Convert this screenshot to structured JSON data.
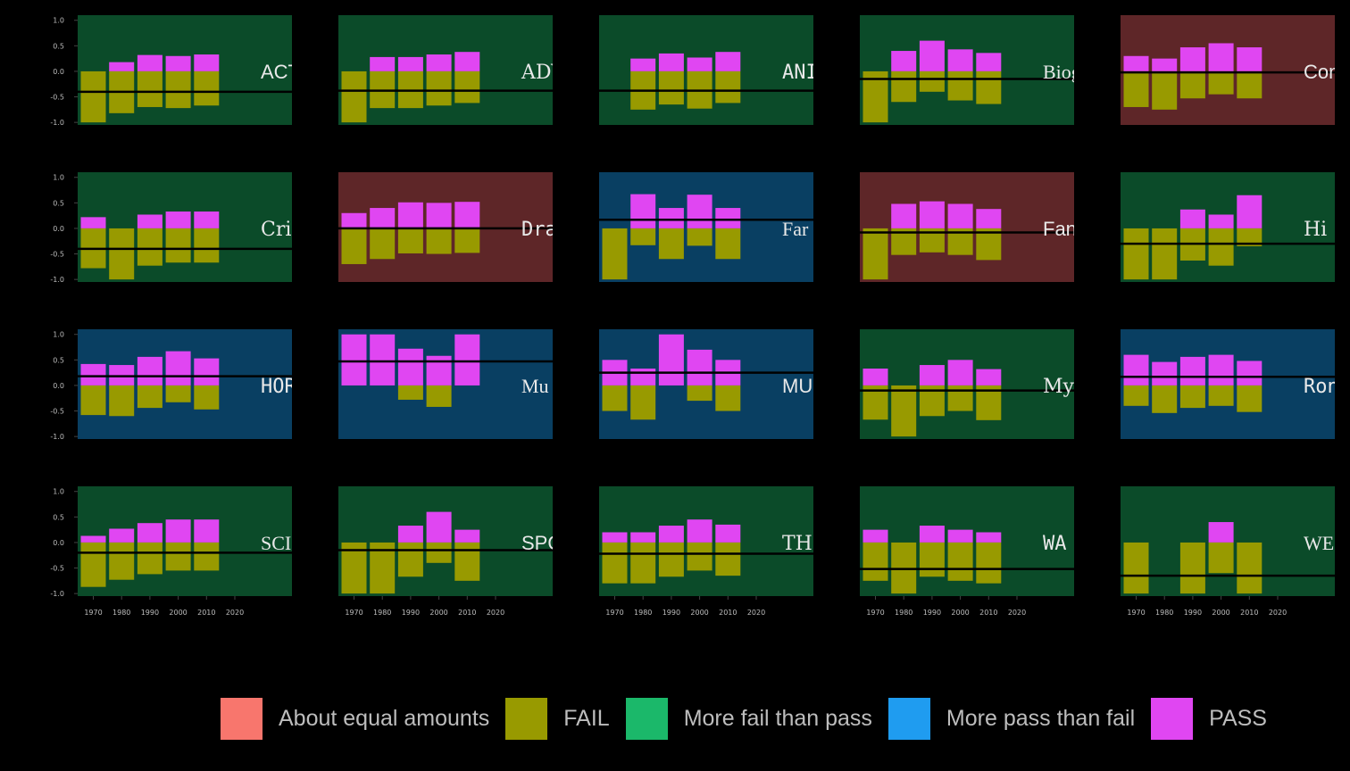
{
  "chart_data": {
    "type": "bar",
    "decades": [
      "1970",
      "1980",
      "1990",
      "2000",
      "2010"
    ],
    "x_ticks": [
      "1970",
      "1980",
      "1990",
      "2000",
      "2010",
      "2020"
    ],
    "y_ticks": [
      "1.0",
      "0.5",
      "0.0",
      "-0.5",
      "-1.0"
    ],
    "ylim": [
      -1.05,
      1.1
    ],
    "colors": {
      "About equal amounts": "#5e2628",
      "More fail than pass": "#0b4b29",
      "More pass than fail": "#093f62",
      "PASS": "#e046f2",
      "FAIL": "#989a00",
      "mean_line": "#000000"
    },
    "legend": [
      {
        "label": "About equal amounts",
        "color": "#f8766d"
      },
      {
        "label": "FAIL",
        "color": "#989a00"
      },
      {
        "label": "More fail than pass",
        "color": "#1bb86a"
      },
      {
        "label": "More pass than fail",
        "color": "#1f9cf0"
      },
      {
        "label": "PASS",
        "color": "#e046f2"
      }
    ],
    "panels": [
      {
        "genre": "ACTION",
        "title_visible": "ACT",
        "category": "More fail than pass",
        "pass": [
          0.0,
          0.18,
          0.32,
          0.3,
          0.33
        ],
        "fail": [
          1.0,
          0.82,
          0.7,
          0.72,
          0.67
        ],
        "mean": -0.4
      },
      {
        "genre": "ADVENTURE",
        "title_visible": "ADVE",
        "category": "More fail than pass",
        "pass": [
          0.0,
          0.28,
          0.28,
          0.33,
          0.38
        ],
        "fail": [
          1.0,
          0.72,
          0.72,
          0.67,
          0.62
        ],
        "mean": -0.38
      },
      {
        "genre": "ANIMATION",
        "title_visible": "ANIMA",
        "category": "More fail than pass",
        "pass": [
          0.0,
          0.25,
          0.35,
          0.27,
          0.38
        ],
        "fail": [
          0.0,
          0.75,
          0.65,
          0.73,
          0.62
        ],
        "mean": -0.38
      },
      {
        "genre": "Biography",
        "title_visible": "Biog",
        "category": "More fail than pass",
        "pass": [
          0.0,
          0.4,
          0.6,
          0.43,
          0.36
        ],
        "fail": [
          1.0,
          0.6,
          0.4,
          0.57,
          0.64
        ],
        "mean": -0.15
      },
      {
        "genre": "Comedy",
        "title_visible": "Com",
        "category": "About equal amounts",
        "pass": [
          0.3,
          0.25,
          0.47,
          0.55,
          0.47
        ],
        "fail": [
          0.7,
          0.75,
          0.53,
          0.45,
          0.53
        ],
        "mean": -0.02
      },
      {
        "genre": "Crime",
        "title_visible": "Cri",
        "category": "More fail than pass",
        "pass": [
          0.22,
          0.0,
          0.27,
          0.33,
          0.33
        ],
        "fail": [
          0.78,
          1.0,
          0.73,
          0.67,
          0.67
        ],
        "mean": -0.4
      },
      {
        "genre": "Drama",
        "title_visible": "Dra",
        "category": "About equal amounts",
        "pass": [
          0.3,
          0.4,
          0.51,
          0.5,
          0.52
        ],
        "fail": [
          0.7,
          0.6,
          0.49,
          0.5,
          0.48
        ],
        "mean": 0.0
      },
      {
        "genre": "Family",
        "title_visible": "Far",
        "category": "More pass than fail",
        "pass": [
          0.0,
          0.67,
          0.4,
          0.66,
          0.4
        ],
        "fail": [
          1.0,
          0.33,
          0.6,
          0.34,
          0.6
        ],
        "mean": 0.17
      },
      {
        "genre": "Fantasy",
        "title_visible": "Fan",
        "category": "About equal amounts",
        "pass": [
          0.0,
          0.48,
          0.53,
          0.48,
          0.38
        ],
        "fail": [
          1.0,
          0.52,
          0.47,
          0.52,
          0.62
        ],
        "mean": -0.08
      },
      {
        "genre": "History",
        "title_visible": "Hi",
        "category": "More fail than pass",
        "pass": [
          0.0,
          0.0,
          0.37,
          0.27,
          0.65
        ],
        "fail": [
          1.0,
          1.0,
          0.63,
          0.73,
          0.35
        ],
        "mean": -0.3
      },
      {
        "genre": "HORROR",
        "title_visible": "HOR",
        "category": "More pass than fail",
        "pass": [
          0.42,
          0.4,
          0.56,
          0.67,
          0.53
        ],
        "fail": [
          0.58,
          0.6,
          0.44,
          0.33,
          0.47
        ],
        "mean": 0.18
      },
      {
        "genre": "Music",
        "title_visible": "Mu",
        "category": "More pass than fail",
        "pass": [
          1.0,
          1.0,
          0.72,
          0.58,
          1.0
        ],
        "fail": [
          0.0,
          0.0,
          0.28,
          0.42,
          0.0
        ],
        "mean": 0.47
      },
      {
        "genre": "MUSICAL",
        "title_visible": "MUS",
        "category": "More pass than fail",
        "pass": [
          0.5,
          0.33,
          1.0,
          0.7,
          0.5
        ],
        "fail": [
          0.5,
          0.67,
          0.0,
          0.3,
          0.5
        ],
        "mean": 0.25
      },
      {
        "genre": "Mystery",
        "title_visible": "Mys",
        "category": "More fail than pass",
        "pass": [
          0.33,
          0.0,
          0.4,
          0.5,
          0.32
        ],
        "fail": [
          0.67,
          1.0,
          0.6,
          0.5,
          0.68
        ],
        "mean": -0.1
      },
      {
        "genre": "Romance",
        "title_visible": "Ron",
        "category": "More pass than fail",
        "pass": [
          0.6,
          0.46,
          0.56,
          0.6,
          0.48
        ],
        "fail": [
          0.4,
          0.54,
          0.44,
          0.4,
          0.52
        ],
        "mean": 0.17
      },
      {
        "genre": "SCI-FI",
        "title_visible": "SCI",
        "category": "More fail than pass",
        "pass": [
          0.13,
          0.27,
          0.38,
          0.45,
          0.45
        ],
        "fail": [
          0.87,
          0.73,
          0.62,
          0.55,
          0.55
        ],
        "mean": -0.2
      },
      {
        "genre": "SPORT",
        "title_visible": "SPO",
        "category": "More fail than pass",
        "pass": [
          0.0,
          0.0,
          0.33,
          0.6,
          0.25
        ],
        "fail": [
          1.0,
          1.0,
          0.67,
          0.4,
          0.75
        ],
        "mean": -0.15
      },
      {
        "genre": "THRILLER",
        "title_visible": "THRIL",
        "category": "More fail than pass",
        "pass": [
          0.2,
          0.2,
          0.33,
          0.45,
          0.35
        ],
        "fail": [
          0.8,
          0.8,
          0.67,
          0.55,
          0.65
        ],
        "mean": -0.22
      },
      {
        "genre": "WAR",
        "title_visible": "WA",
        "category": "More fail than pass",
        "pass": [
          0.25,
          0.0,
          0.33,
          0.25,
          0.2
        ],
        "fail": [
          0.75,
          1.0,
          0.67,
          0.75,
          0.8
        ],
        "mean": -0.52
      },
      {
        "genre": "WESTERN",
        "title_visible": "WES",
        "category": "More fail than pass",
        "pass": [
          0.0,
          null,
          0.0,
          0.4,
          0.0
        ],
        "fail": [
          1.0,
          null,
          1.0,
          0.6,
          1.0
        ],
        "mean": -0.65
      }
    ]
  }
}
